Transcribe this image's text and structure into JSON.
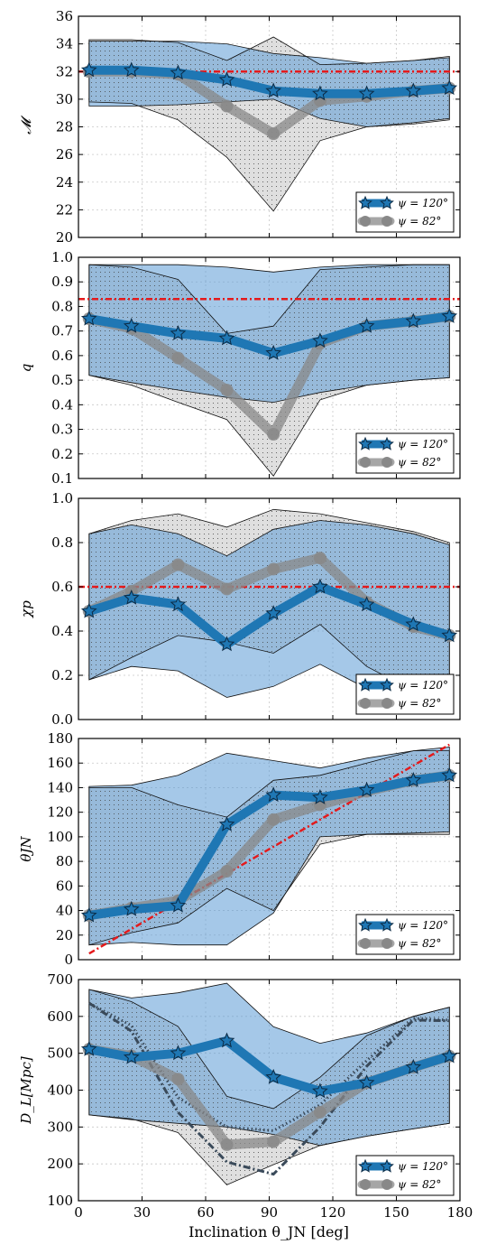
{
  "figure": {
    "xlabel": "Inclination θ_JN [deg]"
  },
  "legend": {
    "series_a": "ψ = 120°",
    "series_b": "ψ = 82°"
  },
  "colors": {
    "series_a": "#1f77b4",
    "series_b": "#888888",
    "band_a": "#5b9bd5",
    "band_b": "#d9d9d9",
    "truth": "#e41a1c"
  },
  "chart_data": [
    {
      "type": "line",
      "ylabel": "𝓜",
      "x": [
        5,
        25,
        47,
        70,
        92,
        114,
        136,
        158,
        175
      ],
      "xlim": [
        0,
        180
      ],
      "xticks": [
        0,
        30,
        60,
        90,
        120,
        150,
        180
      ],
      "ylim": [
        20,
        36
      ],
      "yticks": [
        20,
        22,
        24,
        26,
        28,
        30,
        32,
        34,
        36
      ],
      "truth": 32,
      "series": [
        {
          "name": "ψ = 120°",
          "values": [
            32.1,
            32.1,
            31.9,
            31.4,
            30.6,
            30.4,
            30.4,
            30.6,
            30.8
          ],
          "lower": [
            29.5,
            29.5,
            29.6,
            29.8,
            30.0,
            28.6,
            28.0,
            28.3,
            28.6
          ],
          "upper": [
            34.2,
            34.2,
            34.2,
            34.0,
            33.3,
            33.0,
            32.6,
            32.8,
            33.0
          ]
        },
        {
          "name": "ψ = 82°",
          "values": [
            32.0,
            32.0,
            31.8,
            29.5,
            27.5,
            29.9,
            30.2,
            30.6,
            30.8
          ],
          "lower": [
            29.8,
            29.7,
            28.5,
            25.8,
            21.9,
            27.0,
            28.0,
            28.2,
            28.5
          ],
          "upper": [
            34.3,
            34.3,
            34.1,
            32.8,
            34.5,
            32.5,
            32.6,
            32.8,
            33.1
          ]
        }
      ]
    },
    {
      "type": "line",
      "ylabel": "q",
      "x": [
        5,
        25,
        47,
        70,
        92,
        114,
        136,
        158,
        175
      ],
      "xlim": [
        0,
        180
      ],
      "xticks": [
        0,
        30,
        60,
        90,
        120,
        150,
        180
      ],
      "ylim": [
        0.1,
        1.0
      ],
      "yticks": [
        0.1,
        0.2,
        0.3,
        0.4,
        0.5,
        0.6,
        0.7,
        0.8,
        0.9,
        1.0
      ],
      "truth": 0.83,
      "series": [
        {
          "name": "ψ = 120°",
          "values": [
            0.75,
            0.72,
            0.69,
            0.67,
            0.61,
            0.66,
            0.72,
            0.74,
            0.76
          ],
          "lower": [
            0.52,
            0.49,
            0.46,
            0.43,
            0.41,
            0.45,
            0.48,
            0.5,
            0.51
          ],
          "upper": [
            0.97,
            0.97,
            0.97,
            0.96,
            0.94,
            0.96,
            0.97,
            0.97,
            0.97
          ]
        },
        {
          "name": "ψ = 82°",
          "values": [
            0.75,
            0.71,
            0.59,
            0.46,
            0.28,
            0.65,
            0.72,
            0.74,
            0.76
          ],
          "lower": [
            0.52,
            0.48,
            0.41,
            0.34,
            0.11,
            0.42,
            0.48,
            0.5,
            0.51
          ],
          "upper": [
            0.97,
            0.96,
            0.91,
            0.69,
            0.72,
            0.95,
            0.96,
            0.97,
            0.97
          ]
        }
      ]
    },
    {
      "type": "line",
      "ylabel": "χp",
      "x": [
        5,
        25,
        47,
        70,
        92,
        114,
        136,
        158,
        175
      ],
      "xlim": [
        0,
        180
      ],
      "xticks": [
        0,
        30,
        60,
        90,
        120,
        150,
        180
      ],
      "ylim": [
        0.0,
        1.0
      ],
      "yticks": [
        0.0,
        0.2,
        0.4,
        0.6,
        0.8,
        1.0
      ],
      "truth": 0.6,
      "series": [
        {
          "name": "ψ = 120°",
          "values": [
            0.49,
            0.55,
            0.52,
            0.34,
            0.48,
            0.6,
            0.52,
            0.43,
            0.38
          ],
          "lower": [
            0.18,
            0.24,
            0.22,
            0.1,
            0.15,
            0.25,
            0.14,
            0.08,
            0.05
          ],
          "upper": [
            0.84,
            0.88,
            0.84,
            0.74,
            0.86,
            0.9,
            0.88,
            0.84,
            0.79
          ]
        },
        {
          "name": "ψ = 82°",
          "values": [
            0.49,
            0.58,
            0.7,
            0.59,
            0.68,
            0.73,
            0.53,
            0.42,
            0.38
          ],
          "lower": [
            0.18,
            0.28,
            0.38,
            0.35,
            0.3,
            0.43,
            0.24,
            0.13,
            0.05
          ],
          "upper": [
            0.84,
            0.9,
            0.93,
            0.87,
            0.95,
            0.93,
            0.89,
            0.85,
            0.8
          ]
        }
      ]
    },
    {
      "type": "line",
      "ylabel": "θJN",
      "x": [
        5,
        25,
        47,
        70,
        92,
        114,
        136,
        158,
        175
      ],
      "xlim": [
        0,
        180
      ],
      "xticks": [
        0,
        30,
        60,
        90,
        120,
        150,
        180
      ],
      "ylim": [
        0,
        180
      ],
      "yticks": [
        0,
        20,
        40,
        60,
        80,
        100,
        120,
        140,
        160,
        180
      ],
      "truth_line": {
        "x": [
          5,
          175
        ],
        "y": [
          5,
          175
        ]
      },
      "series": [
        {
          "name": "ψ = 120°",
          "values": [
            36,
            41,
            44,
            110,
            134,
            132,
            138,
            146,
            150
          ],
          "lower": [
            12,
            14,
            12,
            12,
            38,
            100,
            102,
            103,
            104
          ],
          "upper": [
            141,
            142,
            150,
            168,
            162,
            156,
            164,
            170,
            173
          ]
        },
        {
          "name": "ψ = 82°",
          "values": [
            36,
            42,
            48,
            72,
            114,
            126,
            137,
            146,
            150
          ],
          "lower": [
            12,
            22,
            30,
            58,
            40,
            94,
            102,
            102,
            102
          ],
          "upper": [
            140,
            140,
            126,
            116,
            146,
            150,
            160,
            170,
            170
          ]
        }
      ]
    },
    {
      "type": "line",
      "ylabel": "D_L[Mpc]",
      "x": [
        5,
        25,
        47,
        70,
        92,
        114,
        136,
        158,
        175
      ],
      "xlim": [
        0,
        180
      ],
      "xticks": [
        0,
        30,
        60,
        90,
        120,
        150,
        180
      ],
      "ylim": [
        100,
        700
      ],
      "yticks": [
        100,
        200,
        300,
        400,
        500,
        600,
        700
      ],
      "series": [
        {
          "name": "ψ = 120°",
          "values": [
            511,
            489,
            500,
            534,
            435,
            397,
            420,
            462,
            492
          ],
          "lower": [
            333,
            320,
            310,
            300,
            280,
            250,
            275,
            295,
            310
          ],
          "upper": [
            673,
            650,
            664,
            690,
            572,
            527,
            555,
            600,
            625
          ]
        },
        {
          "name": "ψ = 82°",
          "values": [
            511,
            493,
            430,
            252,
            260,
            340,
            420,
            462,
            492
          ],
          "lower": [
            333,
            322,
            285,
            143,
            198,
            250,
            275,
            295,
            310
          ],
          "upper": [
            673,
            640,
            573,
            383,
            350,
            435,
            548,
            600,
            625
          ]
        }
      ],
      "truth_curves": [
        {
          "x": [
            5,
            25,
            47,
            70,
            92,
            114,
            136,
            158,
            175
          ],
          "y": [
            636,
            560,
            340,
            205,
            172,
            300,
            465,
            590,
            588
          ],
          "style": "dash-dot"
        },
        {
          "x": [
            5,
            25,
            47,
            70,
            92,
            114,
            136,
            158,
            175
          ],
          "y": [
            636,
            575,
            380,
            300,
            290,
            360,
            480,
            595,
            590
          ],
          "style": "dotted"
        }
      ]
    }
  ]
}
